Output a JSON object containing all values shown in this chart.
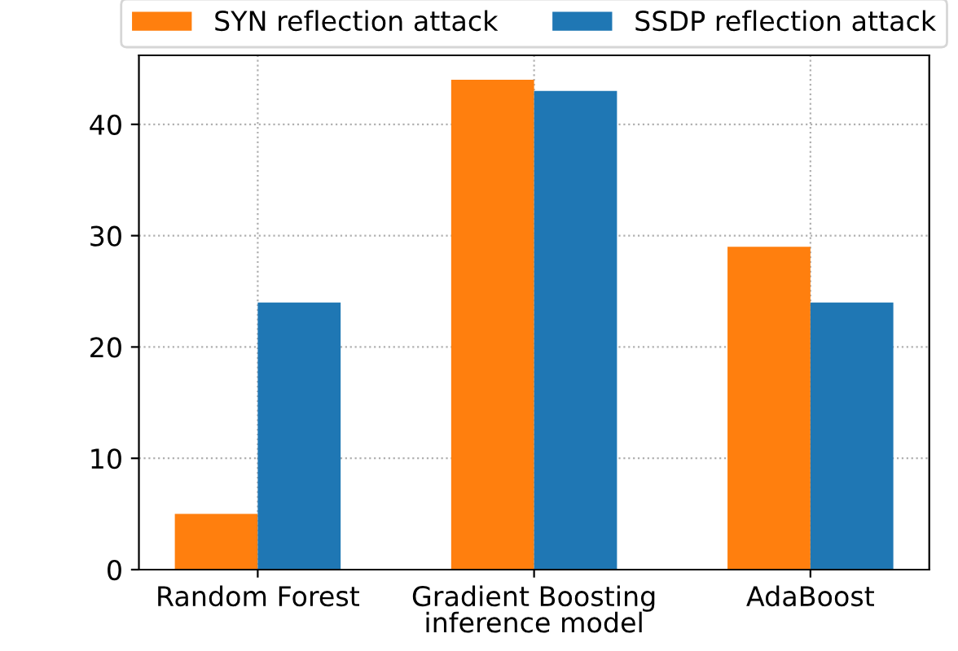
{
  "chart_data": {
    "type": "bar",
    "xlabel": "inference model",
    "categories": [
      "Random Forest",
      "Gradient Boosting",
      "AdaBoost"
    ],
    "series": [
      {
        "name": "SYN reflection attack",
        "color": "#ff7f0e",
        "values": [
          5,
          44,
          29
        ]
      },
      {
        "name": "SSDP reflection attack",
        "color": "#1f77b4",
        "values": [
          24,
          43,
          24
        ]
      }
    ],
    "ylim": [
      0,
      46.2
    ],
    "yticks": [
      0,
      10,
      20,
      30,
      40
    ],
    "grid": true,
    "legend": "top"
  }
}
